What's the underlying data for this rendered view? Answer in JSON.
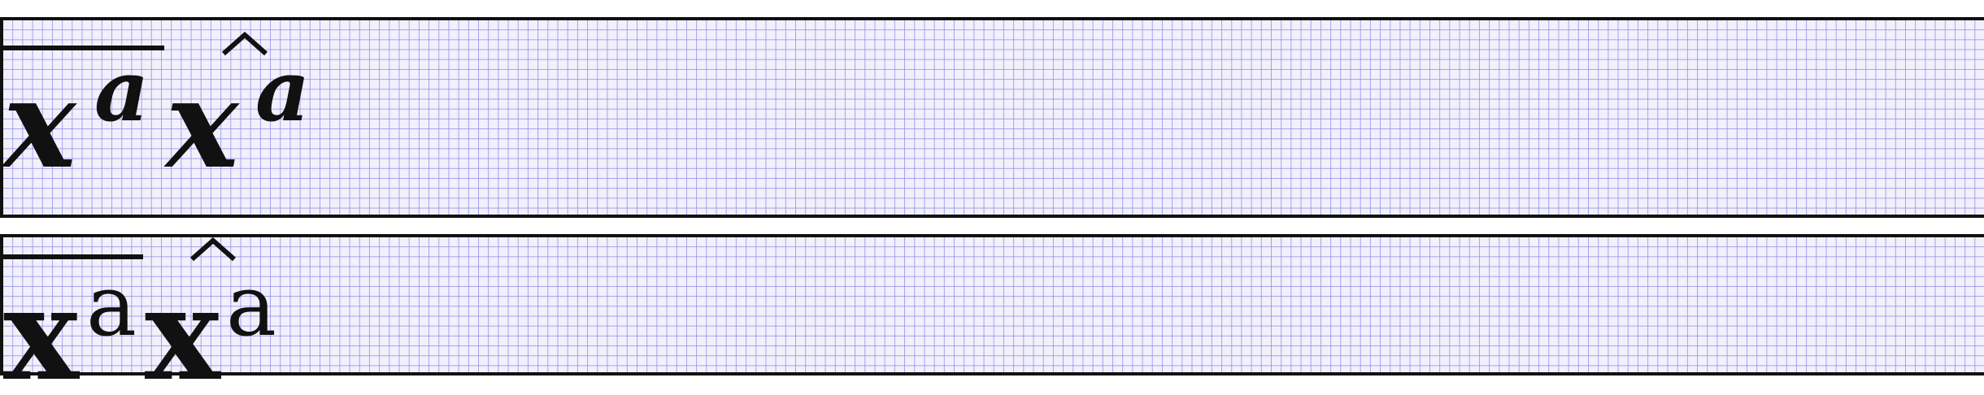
{
  "rows": [
    {
      "style": "italic",
      "terms": [
        {
          "accent": "overline",
          "base": "x",
          "superscript": "a"
        },
        {
          "accent": "hat",
          "base": "x",
          "superscript": "a"
        }
      ]
    },
    {
      "style": "upright-bold",
      "terms": [
        {
          "accent": "overline",
          "base": "x",
          "superscript": "a"
        },
        {
          "accent": "hat",
          "base": "x",
          "superscript": "a"
        }
      ]
    }
  ],
  "colors": {
    "ink": "#111111",
    "grid_background": "#f1f0fb",
    "grid_lines": "#8888e8",
    "panel_border": "#111111"
  }
}
